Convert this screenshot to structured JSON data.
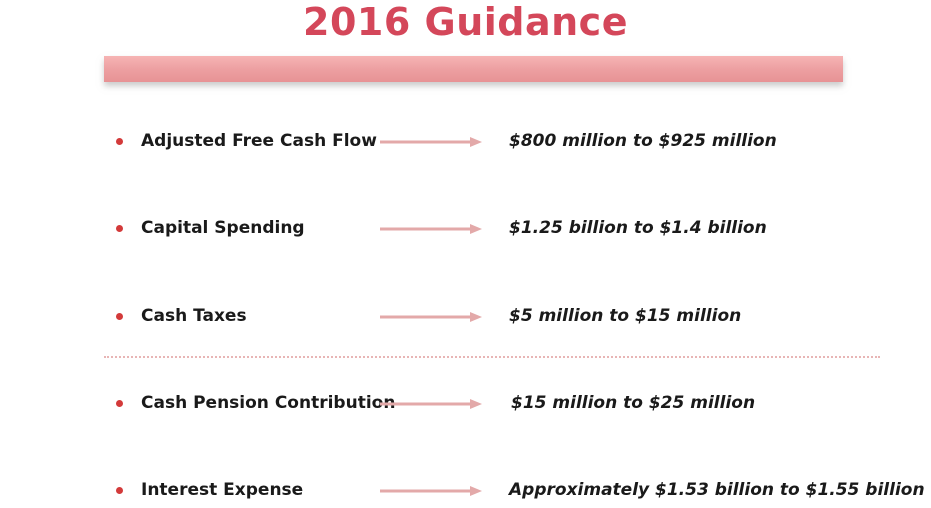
{
  "slide": {
    "title": "2016 Guidance"
  },
  "colors": {
    "title": "#d4475a",
    "title_bar": "#eda0a2",
    "bullet": "#d33a3a",
    "arrow": "#e3a9a9",
    "divider": "#e8b5b5",
    "text": "#1a1a1a"
  },
  "items": [
    {
      "label": "Adjusted Free Cash Flow",
      "value": "$800 million to $925 million"
    },
    {
      "label": "Capital Spending",
      "value": "$1.25 billion to $1.4 billion"
    },
    {
      "label": "Cash Taxes",
      "value": "$5 million to $15 million"
    },
    {
      "label": "Cash Pension Contribution",
      "value": "$15 million to $25 million"
    },
    {
      "label": "Interest Expense",
      "value": "Approximately $1.53 billion to $1.55 billion"
    }
  ]
}
